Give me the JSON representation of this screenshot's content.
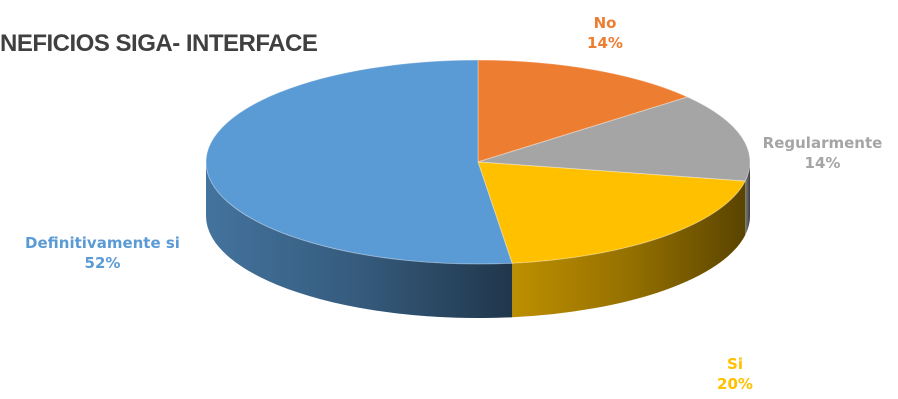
{
  "chart_data": {
    "type": "pie",
    "title": "NEFICIOS SIGA- INTERFACE",
    "categories": [
      "No",
      "Regularmente",
      "Si",
      "Definitivamente si"
    ],
    "values": [
      14,
      14,
      20,
      52
    ],
    "value_labels": [
      "14%",
      "14%",
      "20%",
      "52%"
    ],
    "colors": [
      "#ed7d31",
      "#a5a5a5",
      "#ffc000",
      "#5b9bd5"
    ],
    "legend": "none",
    "style": "3d"
  }
}
